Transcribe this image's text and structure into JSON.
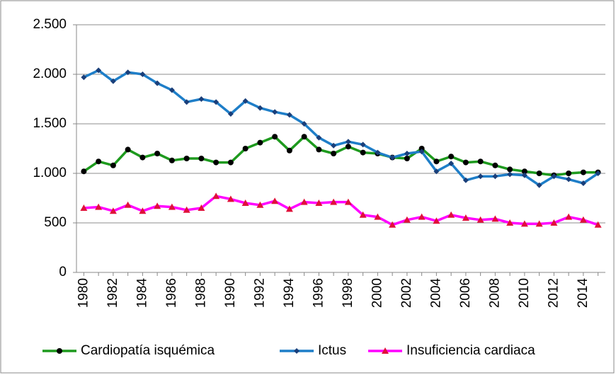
{
  "chart_data": {
    "type": "line",
    "x": [
      1980,
      1981,
      1982,
      1983,
      1984,
      1985,
      1986,
      1987,
      1988,
      1989,
      1990,
      1991,
      1992,
      1993,
      1994,
      1995,
      1996,
      1997,
      1998,
      1999,
      2000,
      2001,
      2002,
      2003,
      2004,
      2005,
      2006,
      2007,
      2008,
      2009,
      2010,
      2011,
      2012,
      2013,
      2014,
      2015
    ],
    "xlim": [
      1979.5,
      2015.5
    ],
    "xticks": [
      1980,
      1982,
      1984,
      1986,
      1988,
      1990,
      1992,
      1994,
      1996,
      1998,
      2000,
      2002,
      2004,
      2006,
      2008,
      2010,
      2012,
      2014
    ],
    "ylim": [
      0,
      2500
    ],
    "yticks": [
      0,
      500,
      {
        "value": 1000,
        "label": "1.000"
      },
      {
        "value": 1500,
        "label": "1.500"
      },
      {
        "value": 2000,
        "label": "2.000"
      },
      {
        "value": 2500,
        "label": "2.500"
      }
    ],
    "grid": true,
    "legend": "bottom",
    "series": [
      {
        "name": "Cardiopatía isquémica",
        "color": "#1e9a1e",
        "marker": "circle",
        "marker_color": "#000000",
        "values": [
          1020,
          1120,
          1080,
          1240,
          1160,
          1200,
          1130,
          1150,
          1150,
          1110,
          1110,
          1250,
          1310,
          1370,
          1230,
          1370,
          1240,
          1200,
          1270,
          1210,
          1200,
          1160,
          1150,
          1250,
          1120,
          1170,
          1110,
          1120,
          1080,
          1040,
          1020,
          1000,
          980,
          1000,
          1010,
          1010
        ]
      },
      {
        "name": "Ictus",
        "color": "#1e7ec8",
        "marker": "diamond",
        "marker_color": "#1a3f7a",
        "values": [
          1970,
          2040,
          1930,
          2020,
          2000,
          1910,
          1840,
          1720,
          1750,
          1720,
          1600,
          1730,
          1660,
          1620,
          1590,
          1500,
          1360,
          1280,
          1320,
          1290,
          1210,
          1160,
          1200,
          1220,
          1020,
          1100,
          930,
          970,
          970,
          990,
          980,
          880,
          970,
          940,
          900,
          1000
        ]
      },
      {
        "name": "Insuficiencia cardiaca",
        "color": "#ff00ff",
        "marker": "triangle",
        "marker_color": "#e0103a",
        "values": [
          650,
          660,
          620,
          680,
          620,
          670,
          660,
          630,
          650,
          770,
          740,
          700,
          680,
          720,
          640,
          710,
          700,
          710,
          710,
          580,
          560,
          480,
          530,
          560,
          520,
          580,
          550,
          530,
          540,
          500,
          490,
          490,
          500,
          560,
          530,
          480
        ]
      }
    ]
  }
}
